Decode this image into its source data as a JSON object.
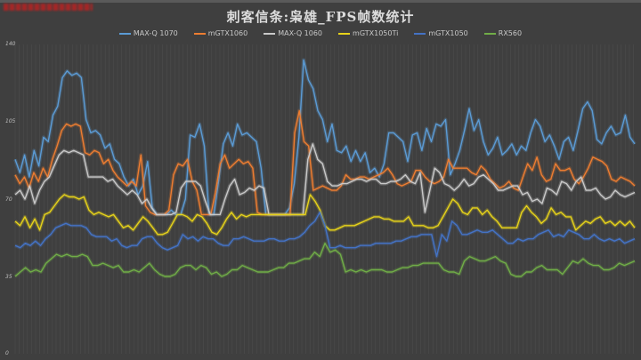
{
  "chart_data": {
    "type": "line",
    "title": "刺客信条:枭雄_FPS帧数统计",
    "xlabel": "",
    "ylabel": "",
    "ylim": [
      0,
      140
    ],
    "yticks": [
      0,
      35,
      70,
      105,
      140
    ],
    "grid": "vertical lines, faint",
    "legend_position": "top",
    "n_points": 100,
    "series": [
      {
        "name": "MAX-Q 1070",
        "color": "#5b9bd5",
        "values": [
          88,
          82,
          90,
          80,
          92,
          85,
          98,
          96,
          108,
          112,
          125,
          128,
          126,
          127,
          125,
          106,
          100,
          101,
          99,
          93,
          95,
          88,
          86,
          80,
          76,
          79,
          72,
          76,
          87,
          66,
          63,
          63,
          63,
          65,
          63,
          63,
          70,
          99,
          98,
          104,
          94,
          63,
          63,
          78,
          95,
          100,
          94,
          104,
          99,
          100,
          98,
          96,
          84,
          63,
          63,
          63,
          63,
          63,
          66,
          77,
          98,
          133,
          124,
          120,
          110,
          106,
          96,
          104,
          92,
          91,
          94,
          87,
          92,
          87,
          91,
          82,
          84,
          80,
          86,
          100,
          100,
          98,
          96,
          87,
          99,
          100,
          92,
          102,
          96,
          104,
          103,
          106,
          81,
          86,
          92,
          101,
          111,
          101,
          106,
          96,
          90,
          93,
          98,
          90,
          92,
          95,
          90,
          94,
          92,
          100,
          106,
          103,
          96,
          99,
          94,
          88,
          96,
          98,
          92,
          101,
          111,
          114,
          110,
          97,
          95,
          100,
          103,
          99,
          100,
          108,
          98,
          95
        ]
      },
      {
        "name": "mGTX1060",
        "color": "#ed7d31",
        "values": [
          81,
          77,
          80,
          75,
          82,
          78,
          84,
          80,
          88,
          94,
          101,
          104,
          103,
          104,
          103,
          91,
          90,
          92,
          91,
          86,
          88,
          83,
          80,
          78,
          76,
          78,
          76,
          90,
          67,
          64,
          63,
          63,
          63,
          65,
          81,
          86,
          85,
          88,
          78,
          74,
          63,
          63,
          63,
          73,
          86,
          90,
          84,
          86,
          88,
          86,
          87,
          84,
          64,
          63,
          63,
          63,
          63,
          63,
          63,
          63,
          100,
          110,
          96,
          94,
          74,
          75,
          76,
          75,
          74,
          74,
          76,
          81,
          79,
          79,
          80,
          80,
          79,
          80,
          81,
          82,
          84,
          81,
          77,
          76,
          77,
          78,
          83,
          83,
          80,
          78,
          77,
          78,
          80,
          88,
          84,
          84,
          84,
          84,
          82,
          81,
          85,
          83,
          79,
          77,
          75,
          76,
          78,
          75,
          74,
          80,
          86,
          83,
          89,
          81,
          78,
          79,
          86,
          83,
          83,
          84,
          79,
          77,
          80,
          84,
          89,
          88,
          87,
          85,
          79,
          78,
          80,
          79,
          78,
          76
        ]
      },
      {
        "name": "MAX-Q 1060",
        "color": "#c9c9c9",
        "values": [
          72,
          74,
          70,
          76,
          68,
          74,
          78,
          80,
          85,
          90,
          92,
          91,
          92,
          91,
          90,
          80,
          80,
          80,
          80,
          78,
          79,
          76,
          74,
          72,
          74,
          72,
          68,
          70,
          66,
          63,
          63,
          63,
          63,
          64,
          75,
          78,
          78,
          78,
          76,
          69,
          63,
          63,
          63,
          70,
          76,
          79,
          72,
          73,
          75,
          74,
          76,
          75,
          63,
          63,
          63,
          63,
          63,
          63,
          63,
          63,
          88,
          95,
          88,
          86,
          78,
          76,
          76,
          77,
          77,
          78,
          79,
          79,
          78,
          79,
          79,
          77,
          77,
          78,
          78,
          79,
          81,
          78,
          77,
          82,
          64,
          74,
          84,
          82,
          77,
          76,
          74,
          76,
          79,
          76,
          77,
          80,
          81,
          79,
          77,
          74,
          74,
          75,
          76,
          76,
          72,
          73,
          69,
          70,
          68,
          75,
          74,
          72,
          78,
          77,
          74,
          78,
          80,
          74,
          74,
          75,
          72,
          70,
          71,
          74,
          72,
          71,
          72,
          73
        ]
      },
      {
        "name": "mGTX1050Ti",
        "color": "#e6d21a",
        "values": [
          60,
          58,
          62,
          57,
          61,
          56,
          63,
          64,
          67,
          70,
          72,
          71,
          71,
          70,
          71,
          65,
          63,
          64,
          63,
          62,
          63,
          60,
          57,
          58,
          56,
          59,
          62,
          60,
          57,
          54,
          54,
          55,
          59,
          63,
          63,
          62,
          60,
          63,
          62,
          59,
          55,
          54,
          57,
          61,
          64,
          61,
          63,
          62,
          63,
          63,
          63,
          63,
          63,
          63,
          63,
          63,
          63,
          63,
          63,
          63,
          72,
          69,
          65,
          58,
          56,
          56,
          57,
          58,
          58,
          58,
          59,
          60,
          61,
          62,
          62,
          61,
          61,
          60,
          60,
          60,
          62,
          58,
          58,
          58,
          57,
          57,
          58,
          62,
          66,
          70,
          68,
          64,
          63,
          66,
          66,
          63,
          65,
          62,
          60,
          57,
          57,
          57,
          57,
          64,
          67,
          64,
          62,
          59,
          61,
          66,
          63,
          64,
          62,
          62,
          56,
          58,
          60,
          59,
          61,
          62,
          59,
          60,
          58,
          60,
          58,
          60,
          57
        ]
      },
      {
        "name": "mGTX1050",
        "color": "#4472c4",
        "values": [
          49,
          48,
          50,
          49,
          51,
          49,
          52,
          54,
          57,
          58,
          59,
          58,
          58,
          58,
          57,
          54,
          53,
          53,
          53,
          51,
          52,
          49,
          48,
          49,
          49,
          52,
          53,
          53,
          50,
          48,
          47,
          48,
          49,
          54,
          52,
          53,
          51,
          53,
          52,
          52,
          50,
          49,
          49,
          52,
          52,
          53,
          52,
          51,
          51,
          51,
          52,
          52,
          51,
          51,
          52,
          52,
          53,
          55,
          58,
          60,
          64,
          58,
          48,
          48,
          49,
          48,
          48,
          48,
          49,
          49,
          49,
          50,
          50,
          50,
          50,
          51,
          51,
          52,
          53,
          53,
          54,
          54,
          54,
          44,
          54,
          51,
          60,
          58,
          54,
          54,
          55,
          56,
          55,
          55,
          56,
          54,
          52,
          50,
          50,
          52,
          51,
          52,
          52,
          54,
          55,
          56,
          53,
          54,
          53,
          56,
          55,
          54,
          52,
          52,
          54,
          52,
          51,
          52,
          51,
          52,
          50,
          51,
          52
        ]
      },
      {
        "name": "RX560",
        "color": "#70ad47",
        "values": [
          35,
          37,
          39,
          37,
          38,
          37,
          41,
          43,
          45,
          44,
          45,
          44,
          44,
          45,
          44,
          40,
          40,
          41,
          40,
          39,
          40,
          37,
          37,
          38,
          37,
          39,
          41,
          38,
          36,
          35,
          35,
          36,
          39,
          40,
          40,
          38,
          40,
          39,
          36,
          37,
          35,
          36,
          38,
          38,
          40,
          39,
          38,
          37,
          37,
          37,
          38,
          39,
          39,
          41,
          41,
          42,
          43,
          43,
          46,
          44,
          50,
          46,
          47,
          45,
          37,
          38,
          37,
          38,
          37,
          38,
          38,
          38,
          37,
          37,
          38,
          39,
          39,
          40,
          40,
          41,
          41,
          41,
          41,
          38,
          37,
          37,
          36,
          42,
          44,
          43,
          42,
          42,
          43,
          44,
          42,
          41,
          36,
          35,
          35,
          37,
          37,
          39,
          40,
          38,
          38,
          38,
          36,
          39,
          42,
          41,
          43,
          41,
          40,
          40,
          38,
          38,
          39,
          41,
          40,
          41,
          42
        ]
      }
    ]
  },
  "header": {
    "title": "刺客信条:枭雄_FPS帧数统计"
  },
  "legend": {
    "items": [
      {
        "label": "MAX-Q 1070",
        "color": "#5b9bd5"
      },
      {
        "label": "mGTX1060",
        "color": "#ed7d31"
      },
      {
        "label": "MAX-Q 1060",
        "color": "#c9c9c9"
      },
      {
        "label": "mGTX1050Ti",
        "color": "#e6d21a"
      },
      {
        "label": "mGTX1050",
        "color": "#4472c4"
      },
      {
        "label": "RX560",
        "color": "#70ad47"
      }
    ]
  },
  "axis": {
    "y_ticks": [
      "140",
      "105",
      "70",
      "35",
      "0"
    ]
  }
}
